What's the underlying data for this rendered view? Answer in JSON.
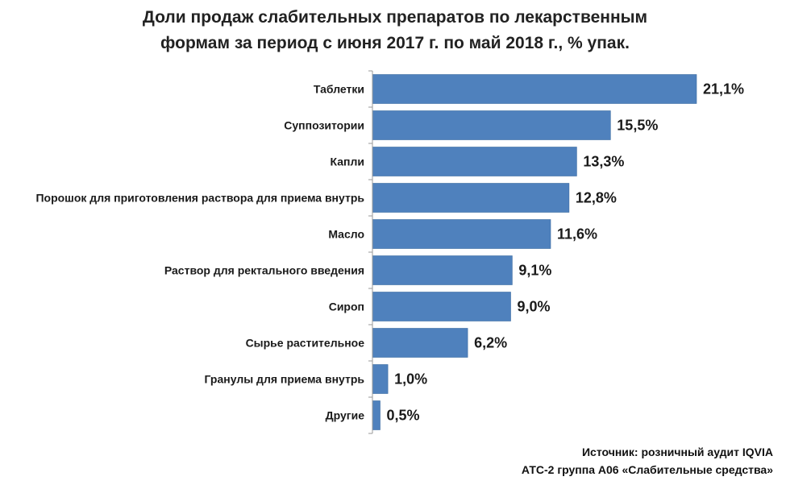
{
  "chart_data": {
    "type": "bar",
    "orientation": "horizontal",
    "title": "Доли продаж слабительных препаратов по лекарственным формам за период с июня 2017 г. по май 2018 г., % упак.",
    "title_lines": [
      "Доли продаж слабительных препаратов по лекарственным",
      "формам за период с июня 2017 г. по май 2018 г., % упак."
    ],
    "categories": [
      "Таблетки",
      "Суппозитории",
      "Капли",
      "Порошок для приготовления раствора для приема внутрь",
      "Масло",
      "Раствор для ректального введения",
      "Сироп",
      "Сырье растительное",
      "Гранулы для приема внутрь",
      "Другие"
    ],
    "values": [
      21.1,
      15.5,
      13.3,
      12.8,
      11.6,
      9.1,
      9.0,
      6.2,
      1.0,
      0.5
    ],
    "value_labels": [
      "21,1%",
      "15,5%",
      "13,3%",
      "12,8%",
      "11,6%",
      "9,1%",
      "9,0%",
      "6,2%",
      "1,0%",
      "0,5%"
    ],
    "xlim": [
      0,
      21.1
    ],
    "grid": false,
    "legend": "none",
    "bar_color": "#4f81bd"
  },
  "source": {
    "line1": "Источник: розничный аудит IQVIA",
    "line2": "АТС-2 группа А06 «Слабительные средства»"
  }
}
